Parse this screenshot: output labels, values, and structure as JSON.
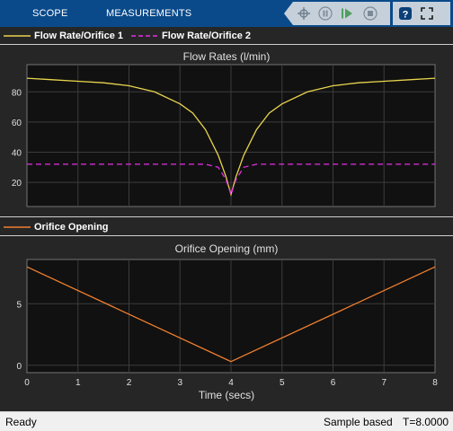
{
  "toolbar": {
    "tabs": [
      "SCOPE",
      "MEASUREMENTS"
    ],
    "icons": [
      "highlight-signal-icon",
      "pause-icon",
      "step-forward-icon",
      "stop-icon",
      "help-icon",
      "expand-icon"
    ]
  },
  "plot1": {
    "legend": [
      "Flow Rate/Orifice 1",
      "Flow Rate/Orifice 2"
    ]
  },
  "plot2": {
    "legend": [
      "Orifice Opening"
    ]
  },
  "status": {
    "state": "Ready",
    "mode": "Sample based",
    "time": "T=8.0000"
  },
  "colors": {
    "series1": "#e8d44d",
    "series2": "#e62ee6",
    "series3": "#f07f2e",
    "toolbar": "#0a4a8a",
    "axes_bg": "#111111",
    "grid": "#3c3c3c"
  },
  "chart_data": [
    {
      "type": "line",
      "title": "Flow Rates (l/min)",
      "xlabel": "",
      "ylabel": "",
      "xlim": [
        0,
        8
      ],
      "ylim": [
        4,
        98
      ],
      "yticks": [
        20,
        40,
        60,
        80
      ],
      "xticks": [],
      "grid": true,
      "legend_position": "top-left strip",
      "series": [
        {
          "name": "Flow Rate/Orifice 1",
          "x": [
            0,
            0.5,
            1,
            1.5,
            2,
            2.5,
            3,
            3.25,
            3.5,
            3.75,
            3.9,
            4,
            4.1,
            4.25,
            4.5,
            4.75,
            5,
            5.5,
            6,
            6.5,
            7,
            7.5,
            8
          ],
          "values": [
            89,
            88,
            87,
            86,
            84,
            80,
            72,
            66,
            55,
            38,
            24,
            12,
            24,
            38,
            55,
            66,
            72,
            80,
            84,
            86,
            87,
            88,
            89
          ]
        },
        {
          "name": "Flow Rate/Orifice 2",
          "x": [
            0,
            0.5,
            1,
            1.5,
            2,
            2.5,
            3,
            3.5,
            3.75,
            3.9,
            4,
            4.1,
            4.25,
            4.5,
            5,
            5.5,
            6,
            6.5,
            7,
            7.5,
            8
          ],
          "values": [
            32,
            32,
            32,
            32,
            32,
            32,
            32,
            32,
            30,
            22,
            12,
            22,
            30,
            32,
            32,
            32,
            32,
            32,
            32,
            32,
            32
          ]
        }
      ]
    },
    {
      "type": "line",
      "title": "Orifice Opening (mm)",
      "xlabel": "Time (secs)",
      "ylabel": "",
      "xlim": [
        0,
        8
      ],
      "ylim": [
        -0.6,
        8.6
      ],
      "yticks": [
        0,
        5
      ],
      "xticks": [
        0,
        1,
        2,
        3,
        4,
        5,
        6,
        7,
        8
      ],
      "grid": true,
      "legend_position": "top-left strip",
      "series": [
        {
          "name": "Orifice Opening",
          "x": [
            0,
            4,
            8
          ],
          "values": [
            8,
            0.3,
            8
          ]
        }
      ]
    }
  ]
}
